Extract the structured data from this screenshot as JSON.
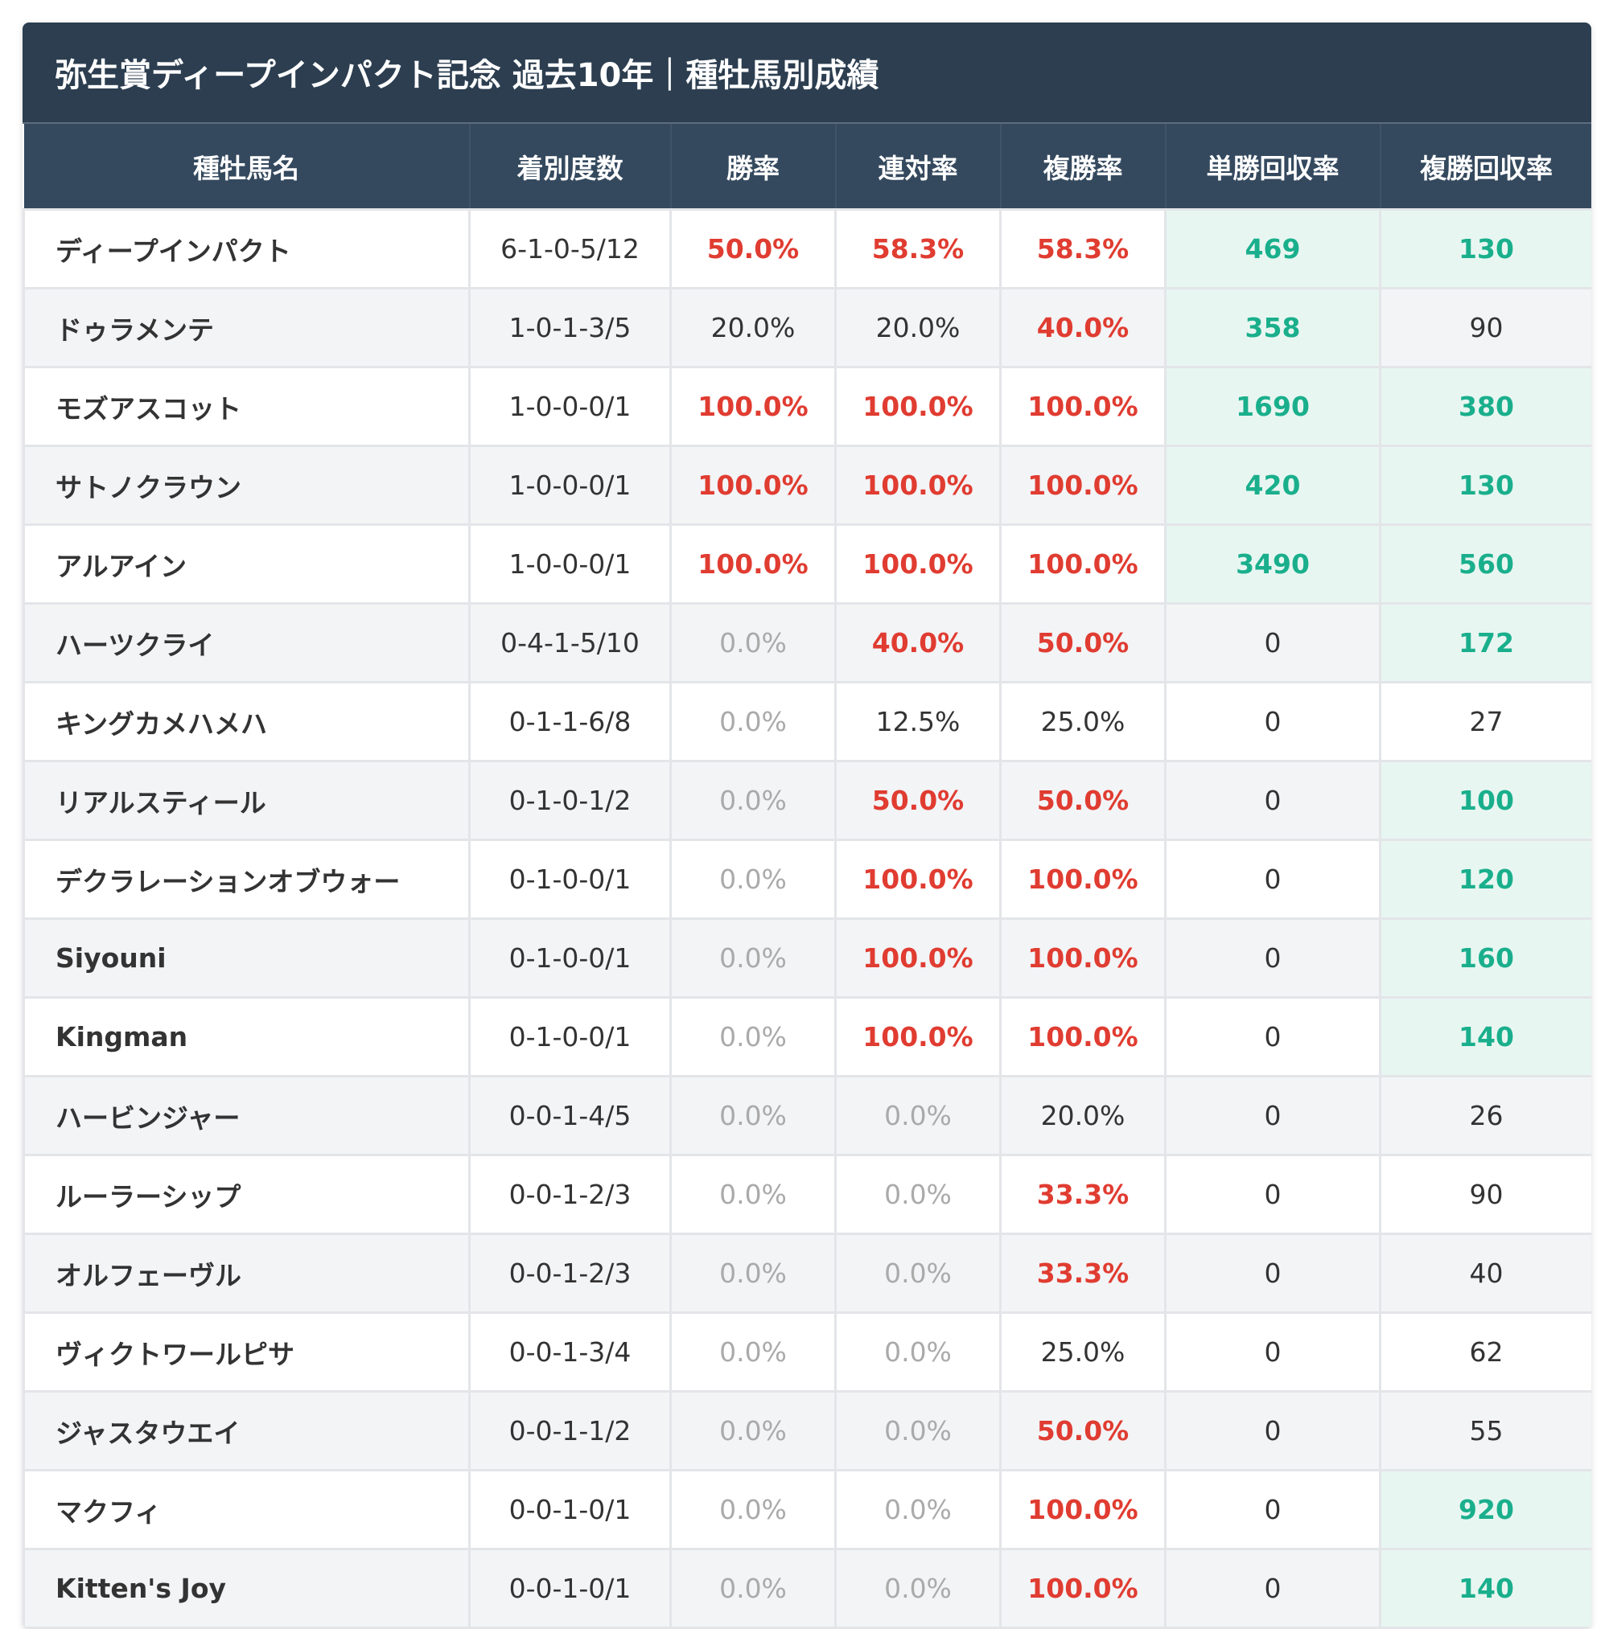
{
  "header": {
    "title": "弥生賞ディープインパクト記念 過去10年｜種牡馬別成績"
  },
  "table": {
    "columns": [
      "種牡馬名",
      "着別度数",
      "勝率",
      "連対率",
      "複勝率",
      "単勝回収率",
      "複勝回収率"
    ],
    "rows": [
      [
        "ディープインパクト",
        "6-1-0-5/12",
        "50.0%",
        "58.3%",
        "58.3%",
        "469",
        "130"
      ],
      [
        "ドゥラメンテ",
        "1-0-1-3/5",
        "20.0%",
        "20.0%",
        "40.0%",
        "358",
        "90"
      ],
      [
        "モズアスコット",
        "1-0-0-0/1",
        "100.0%",
        "100.0%",
        "100.0%",
        "1690",
        "380"
      ],
      [
        "サトノクラウン",
        "1-0-0-0/1",
        "100.0%",
        "100.0%",
        "100.0%",
        "420",
        "130"
      ],
      [
        "アルアイン",
        "1-0-0-0/1",
        "100.0%",
        "100.0%",
        "100.0%",
        "3490",
        "560"
      ],
      [
        "ハーツクライ",
        "0-4-1-5/10",
        "0.0%",
        "40.0%",
        "50.0%",
        "0",
        "172"
      ],
      [
        "キングカメハメハ",
        "0-1-1-6/8",
        "0.0%",
        "12.5%",
        "25.0%",
        "0",
        "27"
      ],
      [
        "リアルスティール",
        "0-1-0-1/2",
        "0.0%",
        "50.0%",
        "50.0%",
        "0",
        "100"
      ],
      [
        "デクラレーションオブウォー",
        "0-1-0-0/1",
        "0.0%",
        "100.0%",
        "100.0%",
        "0",
        "120"
      ],
      [
        "Siyouni",
        "0-1-0-0/1",
        "0.0%",
        "100.0%",
        "100.0%",
        "0",
        "160"
      ],
      [
        "Kingman",
        "0-1-0-0/1",
        "0.0%",
        "100.0%",
        "100.0%",
        "0",
        "140"
      ],
      [
        "ハービンジャー",
        "0-0-1-4/5",
        "0.0%",
        "0.0%",
        "20.0%",
        "0",
        "26"
      ],
      [
        "ルーラーシップ",
        "0-0-1-2/3",
        "0.0%",
        "0.0%",
        "33.3%",
        "0",
        "90"
      ],
      [
        "オルフェーヴル",
        "0-0-1-2/3",
        "0.0%",
        "0.0%",
        "33.3%",
        "0",
        "40"
      ],
      [
        "ヴィクトワールピサ",
        "0-0-1-3/4",
        "0.0%",
        "0.0%",
        "25.0%",
        "0",
        "62"
      ],
      [
        "ジャスタウエイ",
        "0-0-1-1/2",
        "0.0%",
        "0.0%",
        "50.0%",
        "0",
        "55"
      ],
      [
        "マクフィ",
        "0-0-1-0/1",
        "0.0%",
        "0.0%",
        "100.0%",
        "0",
        "920"
      ],
      [
        "Kitten's Joy",
        "0-0-1-0/1",
        "0.0%",
        "0.0%",
        "100.0%",
        "0",
        "140"
      ]
    ]
  }
}
